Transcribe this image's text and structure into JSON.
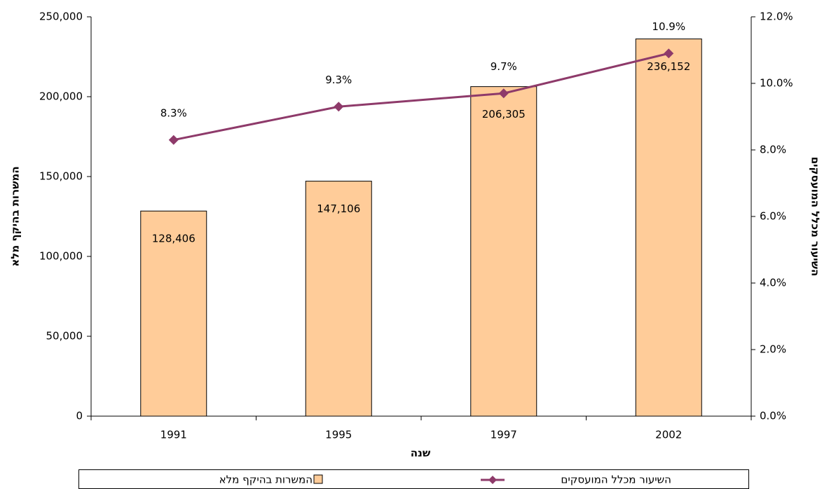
{
  "chart_data": {
    "type": "bar",
    "x_label": "שנה",
    "y_label": "המשרות בהיקף מלא",
    "y2_label": "השיעור מכלל המועסקים",
    "categories": [
      "1991",
      "1995",
      "1997",
      "2002"
    ],
    "series": [
      {
        "name": "המשרות בהיקף מלא",
        "type": "bar",
        "color": "#ffcc99",
        "values": [
          128406,
          147106,
          206305,
          236152
        ],
        "value_labels": [
          "128,406",
          "147,106",
          "206,305",
          "236,152"
        ]
      },
      {
        "name": "השיעור מכלל המועסקים",
        "type": "line",
        "axis": "y2",
        "color": "#8e3a6a",
        "values": [
          8.3,
          9.3,
          9.7,
          10.9
        ],
        "value_labels": [
          "8.3%",
          "9.3%",
          "9.7%",
          "10.9%"
        ]
      }
    ],
    "ylim": [
      0,
      250000
    ],
    "yticks": [
      0,
      {
        "value": 50000,
        "label": "50,000"
      },
      {
        "value": 100000,
        "label": "100,000"
      },
      {
        "value": 150000,
        "label": "150,000"
      },
      {
        "value": 200000,
        "label": "200,000"
      },
      {
        "value": 250000,
        "label": "250,000"
      }
    ],
    "y2lim": [
      0,
      12
    ],
    "y2ticks": [
      {
        "value": 0,
        "label": "0.0%"
      },
      {
        "value": 2,
        "label": "2.0%"
      },
      {
        "value": 4,
        "label": "4.0%"
      },
      {
        "value": 6,
        "label": "6.0%"
      },
      {
        "value": 8,
        "label": "8.0%"
      },
      {
        "value": 10,
        "label": "10.0%"
      },
      {
        "value": 12,
        "label": "12.0%"
      }
    ],
    "legend": "bottom"
  }
}
